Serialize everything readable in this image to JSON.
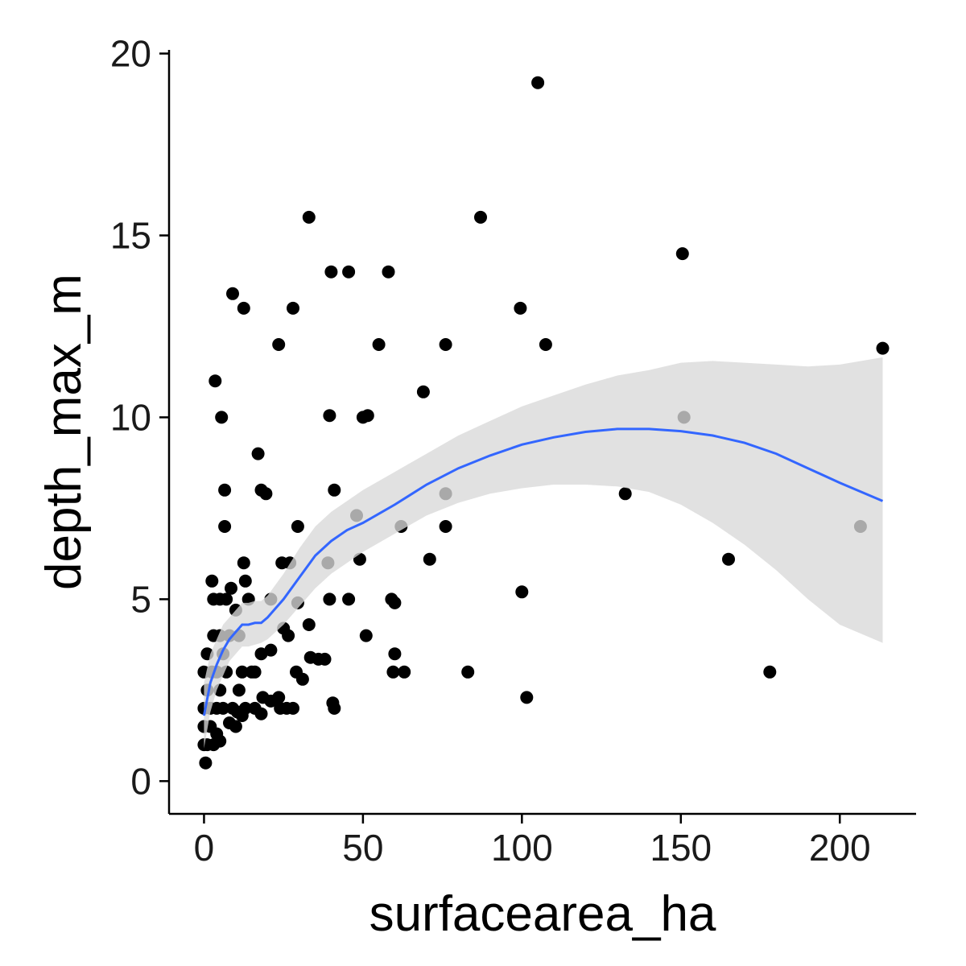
{
  "chart_data": {
    "type": "scatter",
    "xlabel": "surfacearea_ha",
    "ylabel": "depth_max_m",
    "xlim": [
      -11,
      224
    ],
    "ylim": [
      -0.9,
      20.1
    ],
    "x_ticks": [
      0,
      50,
      100,
      150,
      200
    ],
    "x_tick_labels": [
      "0",
      "50",
      "100",
      "150",
      "200"
    ],
    "y_ticks": [
      0,
      5,
      10,
      15,
      20
    ],
    "y_tick_labels": [
      "0",
      "5",
      "10",
      "15",
      "20"
    ],
    "grid": false,
    "legend": "none",
    "colors": {
      "points": "#000000",
      "smooth_line": "#3366ff",
      "confidence_band": "#d9d9d9"
    },
    "points": [
      [
        105,
        19.2
      ],
      [
        33,
        15.5
      ],
      [
        87,
        15.5
      ],
      [
        150.5,
        14.5
      ],
      [
        40,
        14
      ],
      [
        45.5,
        14
      ],
      [
        58,
        14
      ],
      [
        9,
        13.4
      ],
      [
        12.5,
        13
      ],
      [
        28,
        13
      ],
      [
        99.5,
        13
      ],
      [
        23.5,
        12
      ],
      [
        55,
        12
      ],
      [
        76,
        12
      ],
      [
        107.5,
        12
      ],
      [
        213.5,
        11.9
      ],
      [
        3.5,
        11
      ],
      [
        69,
        10.7
      ],
      [
        5.5,
        10
      ],
      [
        39.5,
        10.05
      ],
      [
        50,
        10
      ],
      [
        51.5,
        10.05
      ],
      [
        151,
        10
      ],
      [
        17,
        9
      ],
      [
        6.5,
        8
      ],
      [
        18,
        8
      ],
      [
        19.5,
        7.9
      ],
      [
        41,
        8
      ],
      [
        76,
        7.9
      ],
      [
        132.5,
        7.9
      ],
      [
        48,
        7.3
      ],
      [
        6.5,
        7
      ],
      [
        29.5,
        7
      ],
      [
        62,
        7
      ],
      [
        76,
        7
      ],
      [
        206.5,
        7
      ],
      [
        12.5,
        6
      ],
      [
        24.5,
        6
      ],
      [
        27,
        6
      ],
      [
        39,
        6
      ],
      [
        49,
        6.1
      ],
      [
        71,
        6.1
      ],
      [
        165,
        6.1
      ],
      [
        2.5,
        5.5
      ],
      [
        13,
        5.5
      ],
      [
        8.5,
        5.3
      ],
      [
        10,
        4.7
      ],
      [
        100,
        5.2
      ],
      [
        3,
        5
      ],
      [
        5,
        5
      ],
      [
        7,
        5
      ],
      [
        14,
        5
      ],
      [
        21,
        5
      ],
      [
        29.5,
        4.9
      ],
      [
        39.5,
        5
      ],
      [
        45.5,
        5
      ],
      [
        59,
        5
      ],
      [
        60,
        4.9
      ],
      [
        3,
        4
      ],
      [
        5,
        4
      ],
      [
        8,
        4
      ],
      [
        11,
        4
      ],
      [
        25,
        4.2
      ],
      [
        26.5,
        4
      ],
      [
        33,
        4.3
      ],
      [
        51,
        4
      ],
      [
        1,
        3.5
      ],
      [
        6,
        3.5
      ],
      [
        18,
        3.5
      ],
      [
        21,
        3.6
      ],
      [
        33.5,
        3.4
      ],
      [
        36,
        3.35
      ],
      [
        38,
        3.35
      ],
      [
        60,
        3.5
      ],
      [
        0,
        3
      ],
      [
        2.5,
        3
      ],
      [
        4,
        3
      ],
      [
        7,
        3
      ],
      [
        12,
        3
      ],
      [
        15,
        3
      ],
      [
        16,
        3
      ],
      [
        29,
        3
      ],
      [
        31,
        2.8
      ],
      [
        59.5,
        3
      ],
      [
        63,
        3
      ],
      [
        83,
        3
      ],
      [
        178,
        3
      ],
      [
        1,
        2.5
      ],
      [
        5,
        2.5
      ],
      [
        11,
        2.5
      ],
      [
        18.5,
        2.3
      ],
      [
        23.5,
        2.3
      ],
      [
        0,
        2
      ],
      [
        2,
        2
      ],
      [
        4,
        2
      ],
      [
        6,
        2
      ],
      [
        9,
        2
      ],
      [
        10.5,
        1.9
      ],
      [
        13,
        2
      ],
      [
        16,
        2
      ],
      [
        18,
        1.85
      ],
      [
        21,
        2.2
      ],
      [
        24,
        2
      ],
      [
        26,
        2
      ],
      [
        28,
        2
      ],
      [
        40.5,
        2.15
      ],
      [
        41,
        2
      ],
      [
        101.5,
        2.3
      ],
      [
        0,
        1.5
      ],
      [
        2,
        1.5
      ],
      [
        4,
        1.3
      ],
      [
        8,
        1.6
      ],
      [
        10,
        1.5
      ],
      [
        12,
        1.8
      ],
      [
        0,
        1
      ],
      [
        1,
        1
      ],
      [
        3,
        1
      ],
      [
        5,
        1.1
      ],
      [
        0.5,
        0.5
      ]
    ],
    "smooth": {
      "x": [
        0,
        2,
        4,
        6,
        8,
        10,
        12,
        14,
        16,
        18,
        20,
        25,
        30,
        35,
        40,
        45,
        50,
        60,
        70,
        80,
        90,
        100,
        110,
        120,
        130,
        140,
        150,
        160,
        170,
        180,
        190,
        200,
        213.5
      ],
      "y": [
        1.8,
        2.7,
        3.2,
        3.6,
        3.9,
        4.1,
        4.3,
        4.3,
        4.35,
        4.35,
        4.5,
        5.0,
        5.6,
        6.2,
        6.6,
        6.9,
        7.1,
        7.6,
        8.15,
        8.6,
        8.95,
        9.25,
        9.45,
        9.6,
        9.68,
        9.68,
        9.62,
        9.5,
        9.3,
        9.0,
        8.6,
        8.2,
        7.7
      ],
      "lower": [
        0.9,
        1.9,
        2.5,
        2.9,
        3.3,
        3.5,
        3.7,
        3.7,
        3.75,
        3.8,
        3.9,
        4.3,
        4.8,
        5.3,
        5.7,
        6.0,
        6.3,
        6.8,
        7.3,
        7.65,
        7.9,
        8.05,
        8.15,
        8.15,
        8.1,
        7.95,
        7.6,
        7.1,
        6.5,
        5.8,
        5.0,
        4.3,
        3.8
      ],
      "upper": [
        2.7,
        3.5,
        3.9,
        4.3,
        4.5,
        4.7,
        4.9,
        4.9,
        4.95,
        4.95,
        5.1,
        5.7,
        6.4,
        7.0,
        7.4,
        7.7,
        8.0,
        8.5,
        9.0,
        9.5,
        9.9,
        10.3,
        10.6,
        10.9,
        11.15,
        11.3,
        11.5,
        11.55,
        11.5,
        11.45,
        11.4,
        11.45,
        11.65
      ]
    }
  }
}
